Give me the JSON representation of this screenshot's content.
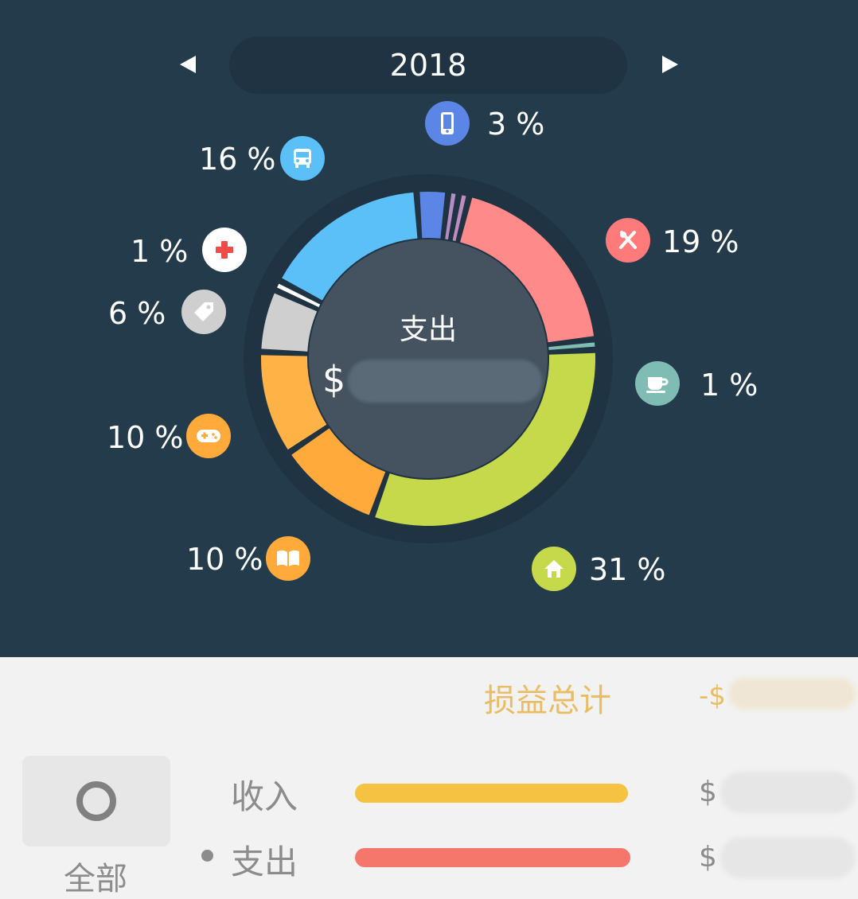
{
  "header": {
    "year": "2018"
  },
  "center": {
    "label": "支出",
    "currency": "$"
  },
  "categories": [
    {
      "name": "phone-icon",
      "percent": "3 %",
      "color": "#5b86e5"
    },
    {
      "name": "bus-icon",
      "percent": "16 %",
      "color": "#5bc0f8"
    },
    {
      "name": "medical-icon",
      "percent": "1 %",
      "color": "#ffffff"
    },
    {
      "name": "tag-icon",
      "percent": "6 %",
      "color": "#cfcfcf"
    },
    {
      "name": "restaurant-icon",
      "percent": "19 %",
      "color": "#ff8a8a"
    },
    {
      "name": "coffee-icon",
      "percent": "1 %",
      "color": "#7fbdb4"
    },
    {
      "name": "gamepad-icon",
      "percent": "10 %",
      "color": "#ffb347"
    },
    {
      "name": "book-icon",
      "percent": "10 %",
      "color": "#ffaa3a"
    },
    {
      "name": "home-icon",
      "percent": "31 %",
      "color": "#c6d94a"
    }
  ],
  "summary": {
    "title": "损益总计",
    "value_prefix": "-$",
    "all_label": "全部",
    "income_label": "收入",
    "income_currency": "$",
    "expense_label": "支出",
    "expense_currency": "$",
    "income_color": "#f5c242",
    "expense_color": "#f5766b",
    "income_fraction": 0.99,
    "expense_fraction": 1.0
  }
}
